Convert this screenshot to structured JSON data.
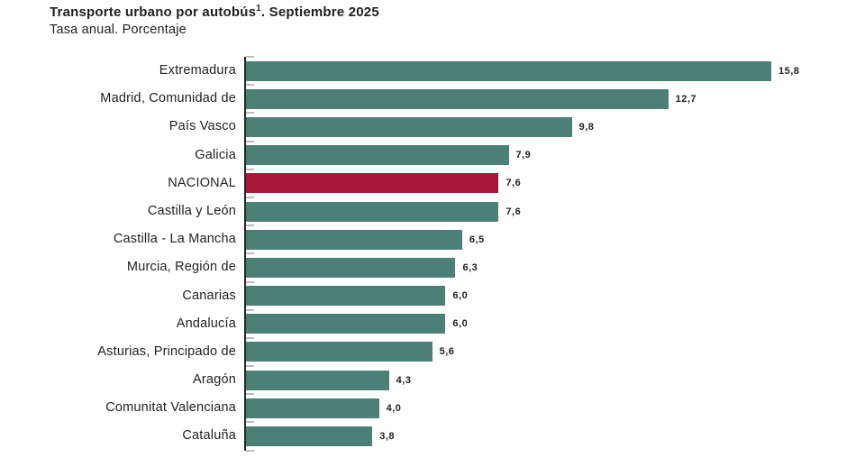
{
  "header": {
    "title_main": "Transporte urbano por autobús",
    "title_superscript": "1",
    "title_rest": ". Septiembre 2025",
    "subtitle": "Tasa anual. Porcentaje"
  },
  "colors": {
    "bar": "#4C8077",
    "highlight": "#A9183B",
    "axis": "#262626",
    "tick": "#bdbdbd",
    "text": "#1f1f1f"
  },
  "chart_data": {
    "type": "bar",
    "orientation": "horizontal",
    "title": "Transporte urbano por autobús1. Septiembre 2025",
    "subtitle": "Tasa anual. Porcentaje",
    "xlabel": "",
    "ylabel": "",
    "xlim": [
      0,
      16.5
    ],
    "grid": false,
    "legend": false,
    "decimal_separator": ",",
    "highlighted_category": "NACIONAL",
    "categories": [
      "Extremadura",
      "Madrid, Comunidad de",
      "País Vasco",
      "Galicia",
      "NACIONAL",
      "Castilla y León",
      "Castilla - La Mancha",
      "Murcia, Región de",
      "Canarias",
      "Andalucía",
      "Asturias, Principado de",
      "Aragón",
      "Comunitat Valenciana",
      "Cataluña"
    ],
    "values": [
      15.8,
      12.7,
      9.8,
      7.9,
      7.6,
      7.6,
      6.5,
      6.3,
      6.0,
      6.0,
      5.6,
      4.3,
      4.0,
      3.8
    ],
    "value_labels": [
      "15,8",
      "12,7",
      "9,8",
      "7,9",
      "7,6",
      "7,6",
      "6,5",
      "6,3",
      "6,0",
      "6,0",
      "5,6",
      "4,3",
      "4,0",
      "3,8"
    ]
  }
}
